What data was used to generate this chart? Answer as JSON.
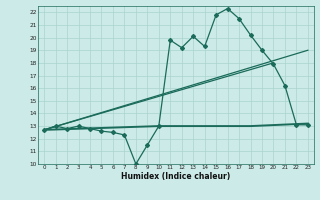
{
  "title": "",
  "xlabel": "Humidex (Indice chaleur)",
  "bg_color": "#cceae7",
  "line_color": "#1a6b5a",
  "grid_color": "#aad4d0",
  "xlim": [
    -0.5,
    23.5
  ],
  "ylim": [
    10,
    22.5
  ],
  "yticks": [
    10,
    11,
    12,
    13,
    14,
    15,
    16,
    17,
    18,
    19,
    20,
    21,
    22
  ],
  "xticks": [
    0,
    1,
    2,
    3,
    4,
    5,
    6,
    7,
    8,
    9,
    10,
    11,
    12,
    13,
    14,
    15,
    16,
    17,
    18,
    19,
    20,
    21,
    22,
    23
  ],
  "line1_x": [
    0,
    1,
    2,
    3,
    4,
    5,
    6,
    7,
    8,
    9,
    10,
    11,
    12,
    13,
    14,
    15,
    16,
    17,
    18,
    19,
    20,
    21,
    22,
    23
  ],
  "line1_y": [
    12.7,
    13.0,
    12.8,
    13.0,
    12.8,
    12.6,
    12.5,
    12.3,
    10.0,
    11.5,
    13.0,
    19.8,
    19.2,
    20.1,
    19.3,
    21.8,
    22.3,
    21.5,
    20.2,
    19.0,
    17.9,
    16.2,
    13.1,
    13.1
  ],
  "line2_x": [
    0,
    20
  ],
  "line2_y": [
    12.7,
    18.0
  ],
  "line3_x": [
    0,
    23
  ],
  "line3_y": [
    12.7,
    19.0
  ],
  "line4_x": [
    0,
    10,
    18,
    23
  ],
  "line4_y": [
    12.7,
    13.0,
    13.0,
    13.2
  ]
}
